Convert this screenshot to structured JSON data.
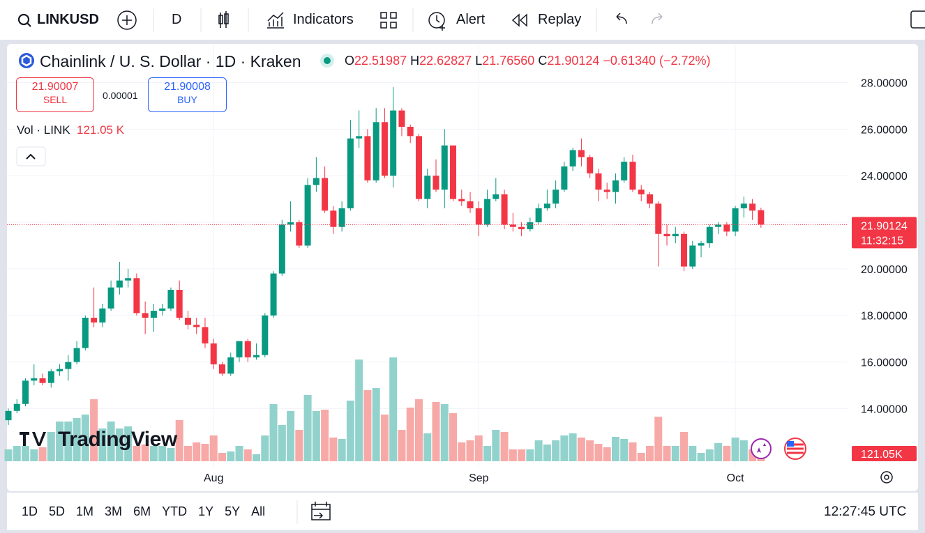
{
  "toolbar": {
    "symbol": "LINKUSD",
    "interval": "D",
    "indicators": "Indicators",
    "alert": "Alert",
    "replay": "Replay"
  },
  "legend": {
    "title": "Chainlink / U. S. Dollar · 1D · Kraken",
    "o_label": "O",
    "o": "22.51987",
    "h_label": "H",
    "h": "22.62827",
    "l_label": "L",
    "l": "21.76560",
    "c_label": "C",
    "c": "21.90124",
    "change": "−0.61340 (−2.72%)"
  },
  "trade": {
    "sell_price": "21.90007",
    "sell": "SELL",
    "spread": "0.00001",
    "buy_price": "21.90008",
    "buy": "BUY"
  },
  "volume_legend": {
    "label": "Vol · LINK",
    "value": "121.05 K"
  },
  "watermark": "TradingView",
  "chart_data": {
    "type": "candlestick",
    "categories": [
      null,
      null,
      null,
      null,
      null,
      null,
      null,
      null,
      null,
      null,
      null,
      null,
      null,
      null,
      null,
      null,
      null,
      null,
      null,
      null,
      null,
      null,
      null,
      null,
      "Aug",
      null,
      null,
      null,
      null,
      null,
      null,
      null,
      null,
      null,
      null,
      null,
      null,
      null,
      null,
      null,
      null,
      null,
      null,
      null,
      null,
      null,
      null,
      null,
      null,
      null,
      null,
      null,
      null,
      null,
      null,
      "Sep",
      null,
      null,
      null,
      null,
      null,
      null,
      null,
      null,
      null,
      null,
      null,
      null,
      null,
      null,
      null,
      null,
      null,
      null,
      null,
      null,
      null,
      null,
      null,
      null,
      null,
      null,
      null,
      null,
      null,
      "Oct",
      null,
      null,
      null
    ],
    "open": [
      13.5,
      13.9,
      14.2,
      15.2,
      15.3,
      15.1,
      15.6,
      15.7,
      16.0,
      16.6,
      17.9,
      17.7,
      18.3,
      19.2,
      19.5,
      19.6,
      18.1,
      17.9,
      18.2,
      18.3,
      19.1,
      17.9,
      17.6,
      17.5,
      16.8,
      15.9,
      15.5,
      16.2,
      16.9,
      16.2,
      16.3,
      18.0,
      19.8,
      21.9,
      22.0,
      21.0,
      23.6,
      23.9,
      22.5,
      21.8,
      22.6,
      25.6,
      25.7,
      23.8,
      26.3,
      24.0,
      26.8,
      26.1,
      25.7,
      23.0,
      24.0,
      23.4,
      25.3,
      23.0,
      22.9,
      22.6,
      21.9,
      23.0,
      23.2,
      21.9,
      21.8,
      21.7,
      22.0,
      22.6,
      22.8,
      23.4,
      24.4,
      25.1,
      24.8,
      24.1,
      23.4,
      23.3,
      23.8,
      24.6,
      23.4,
      23.2,
      22.8,
      21.5,
      21.4,
      21.5,
      20.1,
      21.0,
      21.1,
      21.8,
      21.9,
      21.6,
      22.6,
      22.8,
      22.51987
    ],
    "high": [
      14.0,
      14.4,
      15.3,
      15.9,
      15.5,
      15.7,
      15.9,
      16.3,
      16.9,
      18.0,
      19.2,
      18.5,
      19.5,
      20.3,
      20.0,
      19.8,
      18.6,
      18.5,
      18.5,
      19.2,
      19.5,
      18.2,
      17.9,
      17.9,
      17.0,
      16.0,
      16.4,
      16.9,
      17.0,
      16.8,
      18.1,
      19.9,
      22.1,
      22.9,
      22.1,
      23.9,
      24.8,
      24.4,
      22.7,
      22.9,
      26.4,
      26.8,
      26.0,
      26.9,
      26.9,
      27.8,
      26.9,
      26.2,
      25.8,
      24.3,
      24.7,
      26.0,
      25.3,
      23.4,
      23.3,
      22.9,
      23.4,
      23.9,
      23.4,
      22.4,
      22.0,
      22.2,
      22.8,
      23.4,
      23.8,
      24.6,
      25.2,
      25.6,
      24.9,
      24.3,
      23.7,
      24.1,
      24.8,
      24.9,
      23.6,
      23.3,
      22.9,
      21.9,
      21.8,
      21.6,
      21.2,
      21.2,
      21.9,
      22.0,
      22.0,
      22.7,
      23.1,
      23.0,
      22.62827
    ],
    "low": [
      13.3,
      13.8,
      14.1,
      15.0,
      15.0,
      14.9,
      15.4,
      15.2,
      15.9,
      16.5,
      17.5,
      17.5,
      18.2,
      18.9,
      19.2,
      18.0,
      17.2,
      17.3,
      18.0,
      18.2,
      17.8,
      17.4,
      17.2,
      16.6,
      15.7,
      15.4,
      15.4,
      16.0,
      16.0,
      16.1,
      16.2,
      17.9,
      19.7,
      21.6,
      20.9,
      20.9,
      23.3,
      22.4,
      21.5,
      21.6,
      22.5,
      25.2,
      23.7,
      23.7,
      23.9,
      23.5,
      25.7,
      25.4,
      22.9,
      22.6,
      23.3,
      22.6,
      22.9,
      22.7,
      22.4,
      21.4,
      21.8,
      22.9,
      21.7,
      21.6,
      21.4,
      21.6,
      21.9,
      22.5,
      22.6,
      23.3,
      24.2,
      24.4,
      23.9,
      22.9,
      23.0,
      22.8,
      23.7,
      23.3,
      22.9,
      22.6,
      20.1,
      21.0,
      21.1,
      19.9,
      20.0,
      20.5,
      20.9,
      21.5,
      21.4,
      21.4,
      22.2,
      22.1,
      21.7656
    ],
    "close": [
      13.9,
      14.2,
      15.2,
      15.3,
      15.1,
      15.6,
      15.7,
      16.0,
      16.6,
      17.9,
      17.7,
      18.3,
      19.2,
      19.5,
      19.6,
      18.1,
      17.9,
      18.2,
      18.3,
      19.1,
      17.9,
      17.6,
      17.5,
      16.8,
      15.9,
      15.5,
      16.2,
      16.9,
      16.2,
      16.3,
      18.0,
      19.8,
      21.9,
      22.0,
      21.0,
      23.6,
      23.9,
      22.5,
      21.8,
      22.6,
      25.6,
      25.7,
      23.8,
      26.3,
      24.0,
      26.8,
      26.1,
      25.7,
      23.0,
      24.0,
      23.4,
      25.3,
      23.0,
      22.9,
      22.6,
      21.9,
      23.0,
      23.2,
      21.9,
      21.8,
      21.7,
      22.0,
      22.6,
      22.8,
      23.4,
      24.4,
      25.1,
      24.8,
      24.1,
      23.4,
      23.3,
      23.8,
      24.6,
      23.4,
      23.2,
      22.8,
      21.5,
      21.4,
      21.5,
      20.1,
      21.0,
      21.1,
      21.8,
      21.9,
      21.6,
      22.6,
      22.8,
      22.5,
      21.90124
    ],
    "volume": [
      255,
      330,
      330,
      255,
      300,
      630,
      855,
      855,
      930,
      1005,
      1335,
      705,
      855,
      705,
      750,
      330,
      360,
      330,
      330,
      285,
      885,
      330,
      405,
      375,
      555,
      180,
      210,
      330,
      255,
      150,
      555,
      1230,
      780,
      1080,
      675,
      1425,
      1080,
      1110,
      510,
      480,
      1305,
      2190,
      1530,
      1575,
      1005,
      2235,
      675,
      1155,
      1335,
      600,
      1275,
      1230,
      1035,
      405,
      450,
      555,
      330,
      675,
      630,
      255,
      255,
      255,
      450,
      360,
      450,
      555,
      600,
      510,
      450,
      375,
      300,
      525,
      480,
      405,
      180,
      330,
      960,
      330,
      330,
      630,
      330,
      180,
      255,
      390,
      330,
      510,
      450,
      255,
      121.05
    ],
    "ylim": [
      11.5,
      29.6
    ],
    "yticks": [
      {
        "value": 14,
        "label": "14.00000"
      },
      {
        "value": 16,
        "label": "16.00000"
      },
      {
        "value": 18,
        "label": "18.00000"
      },
      {
        "value": 20,
        "label": "20.00000"
      },
      {
        "value": 22,
        "label": "22.00000"
      },
      {
        "value": 24,
        "label": "24.00000"
      },
      {
        "value": 26,
        "label": "26.00000"
      },
      {
        "value": 28,
        "label": "28.00000"
      }
    ],
    "vlim": [
      0,
      2400
    ],
    "up_color": "#089981",
    "down_color": "#f23645",
    "up_volume_color": "#92d2cc",
    "down_volume_color": "#f7a9a7",
    "grid": true,
    "last_price": 21.90124,
    "countdown": "11:32:15",
    "last_volume_label": "121.05K"
  },
  "ranges": [
    "1D",
    "5D",
    "1M",
    "3M",
    "6M",
    "YTD",
    "1Y",
    "5Y",
    "All"
  ],
  "clock": "12:27:45 UTC"
}
